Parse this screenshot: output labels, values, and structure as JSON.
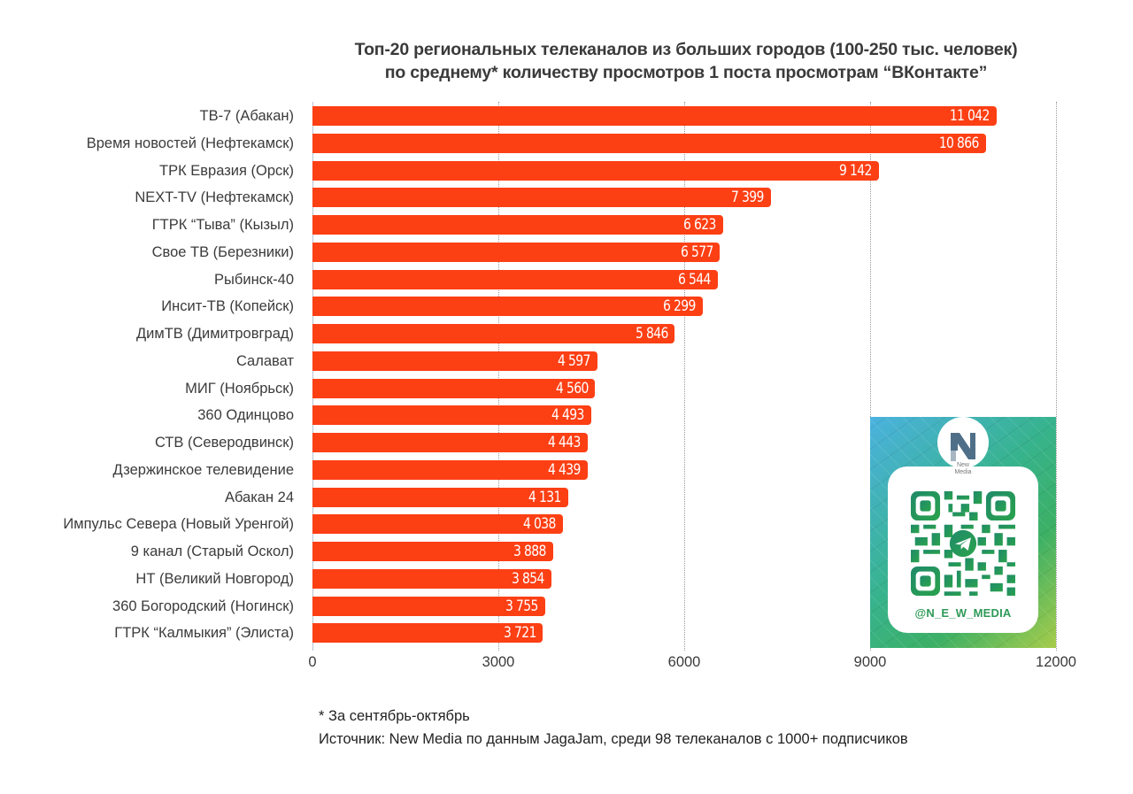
{
  "title": {
    "line1": "Топ-20 региональных телеканалов из больших городов (100-250 тыс. человек)",
    "line2": "по среднему* количеству просмотров 1 поста просмотрам “ВКонтакте”"
  },
  "colors": {
    "bar": "#fd3f14",
    "bar_label": "#ffffff",
    "gridline": "#9a9a9a",
    "qr_accent": "#2f9a58"
  },
  "axis": {
    "ticks": [
      "0",
      "3000",
      "6000",
      "9000",
      "12000"
    ]
  },
  "bars": [
    {
      "label": "ТВ-7 (Абакан)",
      "value": 11042,
      "display": "11 042"
    },
    {
      "label": "Время новостей (Нефтекамск)",
      "value": 10866,
      "display": "10 866"
    },
    {
      "label": "ТРК Евразия (Орск)",
      "value": 9142,
      "display": "9 142"
    },
    {
      "label": "NEXT-TV (Нефтекамск)",
      "value": 7399,
      "display": "7 399"
    },
    {
      "label": "ГТРК “Тыва” (Кызыл)",
      "value": 6623,
      "display": "6 623"
    },
    {
      "label": "Свое ТВ (Березники)",
      "value": 6577,
      "display": "6 577"
    },
    {
      "label": "Рыбинск-40",
      "value": 6544,
      "display": "6 544"
    },
    {
      "label": "Инсит-ТВ (Копейск)",
      "value": 6299,
      "display": "6 299"
    },
    {
      "label": "ДимТВ (Димитровград)",
      "value": 5846,
      "display": "5 846"
    },
    {
      "label": "Салават",
      "value": 4597,
      "display": "4 597"
    },
    {
      "label": "МИГ (Ноябрьск)",
      "value": 4560,
      "display": "4 560"
    },
    {
      "label": "360 Одинцово",
      "value": 4493,
      "display": "4 493"
    },
    {
      "label": "СТВ (Северодвинск)",
      "value": 4443,
      "display": "4 443"
    },
    {
      "label": "Дзержинское телевидение",
      "value": 4439,
      "display": "4 439"
    },
    {
      "label": "Абакан 24",
      "value": 4131,
      "display": "4 131"
    },
    {
      "label": "Импульс Севера (Новый Уренгой)",
      "value": 4038,
      "display": "4 038"
    },
    {
      "label": "9 канал (Старый Оскол)",
      "value": 3888,
      "display": "3 888"
    },
    {
      "label": "НТ (Великий Новгород)",
      "value": 3854,
      "display": "3 854"
    },
    {
      "label": "360 Богородский (Ногинск)",
      "value": 3755,
      "display": "3 755"
    },
    {
      "label": "ГТРК “Калмыкия” (Элиста)",
      "value": 3721,
      "display": "3 721"
    }
  ],
  "qr_card": {
    "brand": "New Media",
    "brand_line1": "New",
    "brand_line2": "Media",
    "handle": "@N_E_W_MEDIA",
    "icon": "telegram-icon"
  },
  "footnotes": {
    "period": "* За сентябрь-октябрь",
    "source": "Источник: New Media по данным JagaJam, среди 98 телеканалов с 1000+ подписчиков"
  },
  "chart_data": {
    "type": "bar",
    "orientation": "horizontal",
    "title": "Топ-20 региональных телеканалов из больших городов (100-250 тыс. человек) по среднему* количеству просмотров 1 поста просмотрам “ВКонтакте”",
    "xlabel": "",
    "ylabel": "",
    "xlim": [
      0,
      12000
    ],
    "xticks": [
      0,
      3000,
      6000,
      9000,
      12000
    ],
    "grid": "vertical dotted",
    "legend": "none",
    "categories": [
      "ТВ-7 (Абакан)",
      "Время новостей (Нефтекамск)",
      "ТРК Евразия (Орск)",
      "NEXT-TV (Нефтекамск)",
      "ГТРК “Тыва” (Кызыл)",
      "Свое ТВ (Березники)",
      "Рыбинск-40",
      "Инсит-ТВ (Копейск)",
      "ДимТВ (Димитровград)",
      "Салават",
      "МИГ (Ноябрьск)",
      "360 Одинцово",
      "СТВ (Северодвинск)",
      "Дзержинское телевидение",
      "Абакан 24",
      "Импульс Севера (Новый Уренгой)",
      "9 канал (Старый Оскол)",
      "НТ (Великий Новгород)",
      "360 Богородский (Ногинск)",
      "ГТРК “Калмыкия” (Элиста)"
    ],
    "values": [
      11042,
      10866,
      9142,
      7399,
      6623,
      6577,
      6544,
      6299,
      5846,
      4597,
      4560,
      4493,
      4443,
      4439,
      4131,
      4038,
      3888,
      3854,
      3755,
      3721
    ],
    "annotations": [
      "* За сентябрь-октябрь",
      "Источник: New Media по данным JagaJam, среди 98 телеканалов с 1000+ подписчиков"
    ]
  }
}
